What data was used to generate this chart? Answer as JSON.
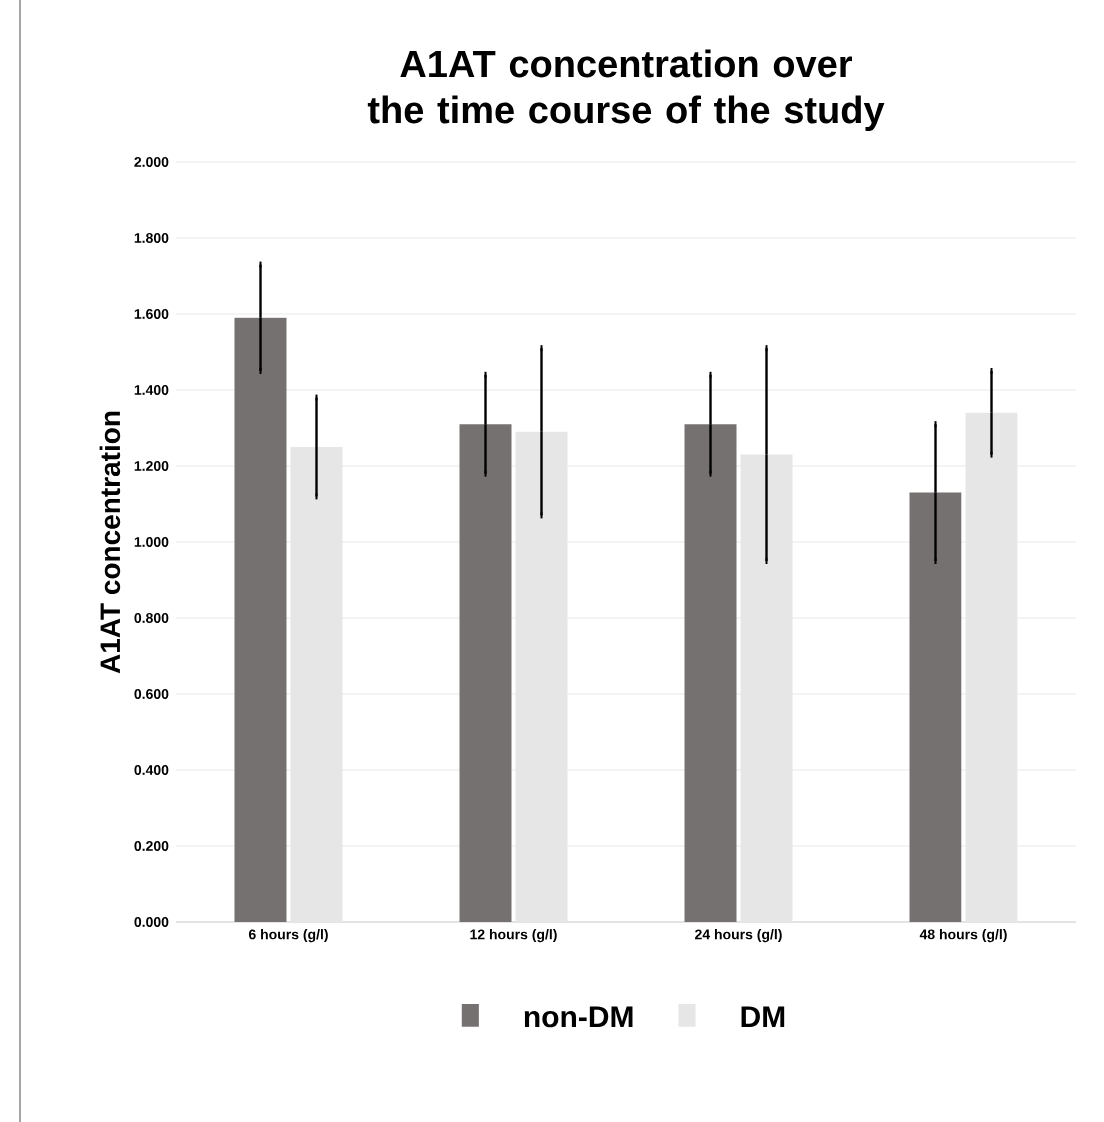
{
  "chart_data": {
    "type": "bar",
    "title": "A1AT concentration over the time course of the study",
    "ylabel": "A1AT concentration",
    "categories": [
      "6 hours (g/l)",
      "12 hours (g/l)",
      "24 hours (g/l)",
      "48 hours (g/l)"
    ],
    "series": [
      {
        "name": "non-DM",
        "color": "#767171",
        "values": [
          1.59,
          1.31,
          1.31,
          1.13
        ],
        "errors": [
          0.14,
          0.13,
          0.13,
          0.18
        ]
      },
      {
        "name": "DM",
        "color": "#e7e6e6",
        "values": [
          1.25,
          1.29,
          1.23,
          1.34
        ],
        "errors": [
          0.13,
          0.22,
          0.28,
          0.11
        ]
      }
    ],
    "ylim": [
      0,
      2
    ],
    "yticks": [
      {
        "value": 0,
        "label": "0.000"
      },
      {
        "value": 0.2,
        "label": "0.200"
      },
      {
        "value": 0.4,
        "label": "0.400"
      },
      {
        "value": 0.6,
        "label": "0.600"
      },
      {
        "value": 0.8,
        "label": "0.800"
      },
      {
        "value": 1.0,
        "label": "1.000"
      },
      {
        "value": 1.2,
        "label": "1.200"
      },
      {
        "value": 1.4,
        "label": "1.400"
      },
      {
        "value": 1.6,
        "label": "1.600"
      },
      {
        "value": 1.8,
        "label": "1.800"
      },
      {
        "value": 2.0,
        "label": "2.000"
      }
    ],
    "grid": "y",
    "legend": "bottom"
  }
}
